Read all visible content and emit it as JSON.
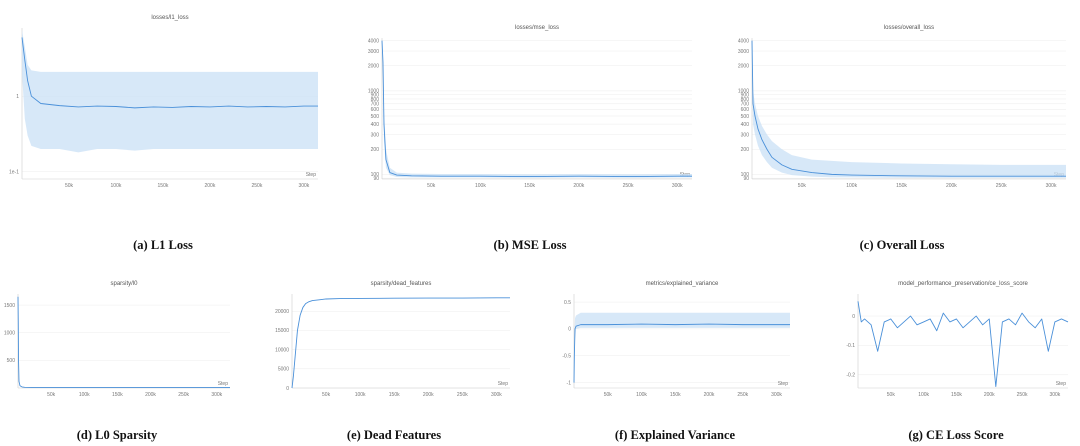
{
  "series_color": "#4a90d9",
  "band_color": "#c9e0f6",
  "chart_data": [
    {
      "id": "l1",
      "type": "line",
      "title": "losses/l1_loss",
      "caption": "(a) L1 Loss",
      "xlabel": "Step",
      "yscale": "log",
      "xlim": [
        0,
        315000
      ],
      "ylim": [
        0.08,
        8
      ],
      "xticks": [
        50000,
        100000,
        150000,
        200000,
        250000,
        300000
      ],
      "xtick_labels": [
        "50k",
        "100k",
        "150k",
        "200k",
        "250k",
        "300k"
      ],
      "yticks": [
        0.1,
        1
      ],
      "ytick_labels": [
        "1e-1",
        "1"
      ],
      "x": [
        0,
        3000,
        6000,
        10000,
        20000,
        40000,
        60000,
        80000,
        100000,
        120000,
        140000,
        160000,
        180000,
        200000,
        220000,
        240000,
        260000,
        280000,
        300000,
        315000
      ],
      "y": [
        6,
        3,
        1.6,
        1.0,
        0.8,
        0.75,
        0.72,
        0.74,
        0.73,
        0.7,
        0.72,
        0.71,
        0.73,
        0.72,
        0.74,
        0.72,
        0.73,
        0.72,
        0.74,
        0.74
      ],
      "band_upper": [
        7.5,
        4.5,
        2.6,
        2.2,
        2.1,
        2.1,
        2.1,
        2.1,
        2.1,
        2.1,
        2.1,
        2.1,
        2.1,
        2.1,
        2.1,
        2.1,
        2.1,
        2.1,
        2.1,
        2.1
      ],
      "band_lower": [
        2,
        0.5,
        0.3,
        0.22,
        0.2,
        0.2,
        0.18,
        0.2,
        0.2,
        0.19,
        0.2,
        0.2,
        0.2,
        0.2,
        0.2,
        0.2,
        0.2,
        0.2,
        0.2,
        0.2
      ]
    },
    {
      "id": "mse",
      "type": "line",
      "title": "losses/mse_loss",
      "caption": "(b) MSE Loss",
      "xlabel": "Step",
      "yscale": "log",
      "xlim": [
        0,
        315000
      ],
      "ylim": [
        88,
        4300
      ],
      "xticks": [
        50000,
        100000,
        150000,
        200000,
        250000,
        300000
      ],
      "xtick_labels": [
        "50k",
        "100k",
        "150k",
        "200k",
        "250k",
        "300k"
      ],
      "yticks": [
        90,
        100,
        200,
        300,
        400,
        500,
        600,
        700,
        800,
        900,
        1000,
        2000,
        3000,
        4000
      ],
      "ytick_labels": [
        "90",
        "100",
        "200",
        "300",
        "400",
        "500",
        "600",
        "700",
        "800",
        "900",
        "1000",
        "2000",
        "3000",
        "4000"
      ],
      "x": [
        0,
        1000,
        2000,
        4000,
        8000,
        15000,
        30000,
        60000,
        100000,
        150000,
        200000,
        250000,
        300000,
        315000
      ],
      "y": [
        4000,
        2200,
        400,
        150,
        105,
        98,
        96,
        95,
        95,
        94,
        95,
        94,
        95,
        95
      ],
      "band_upper": [
        4100,
        2600,
        600,
        200,
        120,
        105,
        102,
        101,
        101,
        100,
        101,
        100,
        101,
        101
      ],
      "band_lower": [
        3000,
        1500,
        250,
        120,
        98,
        93,
        92,
        92,
        92,
        91,
        92,
        91,
        92,
        92
      ]
    },
    {
      "id": "overall",
      "type": "line",
      "title": "losses/overall_loss",
      "caption": "(c) Overall Loss",
      "xlabel": "Step",
      "yscale": "log",
      "xlim": [
        0,
        315000
      ],
      "ylim": [
        88,
        4300
      ],
      "xticks": [
        50000,
        100000,
        150000,
        200000,
        250000,
        300000
      ],
      "xtick_labels": [
        "50k",
        "100k",
        "150k",
        "200k",
        "250k",
        "300k"
      ],
      "yticks": [
        90,
        100,
        200,
        300,
        400,
        500,
        600,
        700,
        800,
        900,
        1000,
        2000,
        3000,
        4000
      ],
      "ytick_labels": [
        "90",
        "100",
        "200",
        "300",
        "400",
        "500",
        "600",
        "700",
        "800",
        "900",
        "1000",
        "2000",
        "3000",
        "4000"
      ],
      "x": [
        0,
        1000,
        3000,
        6000,
        10000,
        15000,
        20000,
        30000,
        40000,
        60000,
        80000,
        100000,
        150000,
        200000,
        250000,
        300000,
        315000
      ],
      "y": [
        4000,
        700,
        500,
        350,
        260,
        200,
        160,
        130,
        115,
        105,
        100,
        98,
        96,
        95,
        95,
        95,
        95
      ],
      "band_upper": [
        4200,
        1000,
        700,
        500,
        380,
        300,
        250,
        200,
        170,
        150,
        145,
        140,
        135,
        132,
        130,
        130,
        130
      ],
      "band_lower": [
        2500,
        400,
        300,
        220,
        170,
        140,
        120,
        105,
        98,
        94,
        92,
        92,
        91,
        91,
        91,
        91,
        91
      ]
    },
    {
      "id": "l0",
      "type": "line",
      "title": "sparsity/l0",
      "caption": "(d) L0 Sparsity",
      "xlabel": "Step",
      "yscale": "linear",
      "xlim": [
        0,
        320000
      ],
      "ylim": [
        0,
        1700
      ],
      "xticks": [
        50000,
        100000,
        150000,
        200000,
        250000,
        300000
      ],
      "xtick_labels": [
        "50k",
        "100k",
        "150k",
        "200k",
        "250k",
        "300k"
      ],
      "yticks": [
        500,
        1000,
        1500
      ],
      "ytick_labels": [
        "500",
        "1000",
        "1500"
      ],
      "x": [
        0,
        400,
        800,
        1500,
        3000,
        6000,
        10000,
        20000,
        50000,
        100000,
        150000,
        200000,
        250000,
        300000,
        320000
      ],
      "y": [
        1650,
        1200,
        500,
        120,
        40,
        20,
        12,
        10,
        10,
        10,
        10,
        10,
        10,
        10,
        10
      ]
    },
    {
      "id": "dead",
      "type": "line",
      "title": "sparsity/dead_features",
      "caption": "(e) Dead Features",
      "xlabel": "Step",
      "yscale": "linear",
      "xlim": [
        0,
        320000
      ],
      "ylim": [
        0,
        24500
      ],
      "xticks": [
        50000,
        100000,
        150000,
        200000,
        250000,
        300000
      ],
      "xtick_labels": [
        "50k",
        "100k",
        "150k",
        "200k",
        "250k",
        "300k"
      ],
      "yticks": [
        0,
        5000,
        10000,
        15000,
        20000
      ],
      "ytick_labels": [
        "0",
        "5000",
        "10000",
        "15000",
        "20000"
      ],
      "x": [
        0,
        2000,
        5000,
        8000,
        12000,
        16000,
        20000,
        25000,
        30000,
        40000,
        50000,
        70000,
        100000,
        150000,
        200000,
        250000,
        300000,
        320000
      ],
      "y": [
        0,
        3000,
        9000,
        15000,
        19000,
        21000,
        22000,
        22500,
        22800,
        23000,
        23200,
        23300,
        23350,
        23400,
        23450,
        23450,
        23500,
        23500
      ]
    },
    {
      "id": "ev",
      "type": "line",
      "title": "metrics/explained_variance",
      "caption": "(f) Explained Variance",
      "xlabel": "Step",
      "yscale": "linear",
      "xlim": [
        0,
        320000
      ],
      "ylim": [
        -1.1,
        0.65
      ],
      "xticks": [
        50000,
        100000,
        150000,
        200000,
        250000,
        300000
      ],
      "xtick_labels": [
        "50k",
        "100k",
        "150k",
        "200k",
        "250k",
        "300k"
      ],
      "yticks": [
        -1,
        -0.5,
        0,
        0.5
      ],
      "ytick_labels": [
        "-1",
        "-0.5",
        "0",
        "0.5"
      ],
      "x": [
        0,
        500,
        1500,
        3000,
        10000,
        50000,
        100000,
        150000,
        200000,
        250000,
        300000,
        320000
      ],
      "y": [
        -1.0,
        -0.5,
        0.0,
        0.05,
        0.08,
        0.08,
        0.09,
        0.08,
        0.09,
        0.08,
        0.08,
        0.08
      ],
      "band_upper": [
        -0.9,
        -0.2,
        0.2,
        0.25,
        0.3,
        0.3,
        0.3,
        0.3,
        0.3,
        0.3,
        0.3,
        0.3
      ],
      "band_lower": [
        -1.0,
        -0.8,
        -0.2,
        0.0,
        0.02,
        0.02,
        0.02,
        0.02,
        0.02,
        0.02,
        0.02,
        0.02
      ]
    },
    {
      "id": "ce",
      "type": "line",
      "title": "model_performance_preservation/ce_loss_score",
      "caption": "(g) CE Loss Score",
      "xlabel": "Step",
      "yscale": "linear",
      "xlim": [
        0,
        320000
      ],
      "ylim": [
        -0.245,
        0.075
      ],
      "xticks": [
        50000,
        100000,
        150000,
        200000,
        250000,
        300000
      ],
      "xtick_labels": [
        "50k",
        "100k",
        "150k",
        "200k",
        "250k",
        "300k"
      ],
      "yticks": [
        -0.2,
        -0.1,
        0
      ],
      "ytick_labels": [
        "-0.2",
        "-0.1",
        "0"
      ],
      "x": [
        0,
        5000,
        10000,
        20000,
        30000,
        40000,
        50000,
        60000,
        70000,
        80000,
        90000,
        100000,
        110000,
        120000,
        130000,
        140000,
        150000,
        160000,
        170000,
        180000,
        190000,
        200000,
        210000,
        220000,
        230000,
        240000,
        250000,
        260000,
        270000,
        280000,
        290000,
        300000,
        310000,
        320000
      ],
      "y": [
        0.05,
        -0.02,
        -0.01,
        -0.03,
        -0.12,
        -0.02,
        -0.01,
        -0.04,
        -0.02,
        0.0,
        -0.03,
        -0.02,
        -0.01,
        -0.05,
        0.01,
        -0.02,
        -0.01,
        -0.04,
        -0.02,
        0.0,
        -0.03,
        -0.01,
        -0.24,
        -0.02,
        -0.01,
        -0.03,
        0.01,
        -0.02,
        -0.04,
        -0.01,
        -0.12,
        -0.02,
        -0.01,
        -0.02
      ]
    }
  ]
}
